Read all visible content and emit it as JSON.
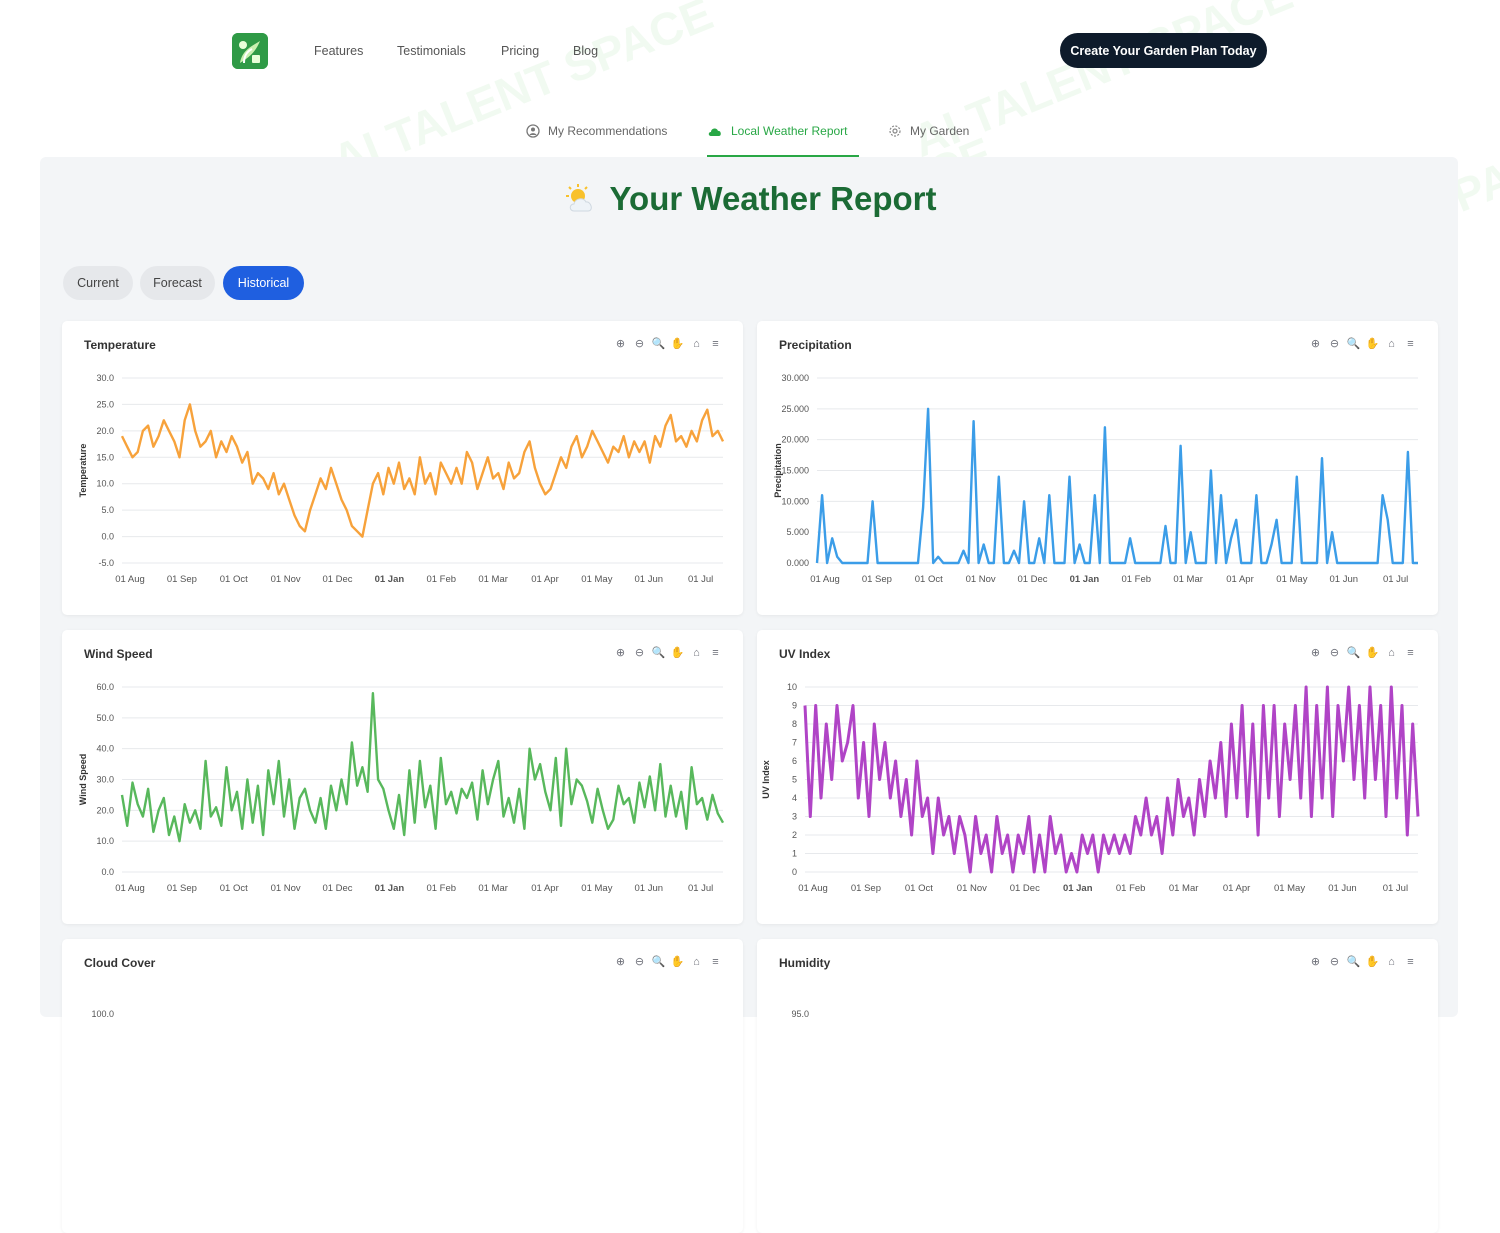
{
  "nav": {
    "links": [
      "Features",
      "Testimonials",
      "Pricing",
      "Blog"
    ],
    "cta_label": "Create Your Garden Plan Today",
    "logo_icon": "plant-logo-icon"
  },
  "tabs": [
    {
      "label": "My Recommendations",
      "icon": "user-circle-icon",
      "active": false
    },
    {
      "label": "Local Weather Report",
      "icon": "cloud-icon",
      "active": true
    },
    {
      "label": "My Garden",
      "icon": "gear-icon",
      "active": false
    }
  ],
  "page_title": "Your Weather Report",
  "pills": [
    {
      "label": "Current",
      "active": false
    },
    {
      "label": "Forecast",
      "active": false
    },
    {
      "label": "Historical",
      "active": true
    }
  ],
  "watermark_text": "AI TALENT SPACE",
  "x_labels": [
    "01 Aug",
    "01 Sep",
    "01 Oct",
    "01 Nov",
    "01 Dec",
    "01 Jan",
    "01 Feb",
    "01 Mar",
    "01 Apr",
    "01 May",
    "01 Jun",
    "01 Jul"
  ],
  "x_bold": "01 Jan",
  "chart_data": [
    {
      "type": "line",
      "title": "Temperature",
      "ylabel": "Temperature",
      "color": "#f7a23b",
      "ylim": [
        -5,
        30
      ],
      "yticks": [
        "30.0",
        "25.0",
        "20.0",
        "15.0",
        "10.0",
        "5.0",
        "0.0",
        "-5.0"
      ],
      "series": [
        {
          "values": [
            19,
            17,
            15,
            16,
            20,
            21,
            17,
            19,
            22,
            20,
            18,
            15,
            22,
            25,
            20,
            17,
            18,
            20,
            15,
            18,
            16,
            19,
            17,
            14,
            16,
            10,
            12,
            11,
            9,
            12,
            8,
            10,
            7,
            4,
            2,
            1,
            5,
            8,
            11,
            9,
            13,
            10,
            7,
            5,
            2,
            1,
            0,
            5,
            10,
            12,
            8,
            13,
            10,
            14,
            9,
            11,
            8,
            15,
            10,
            12,
            8,
            14,
            12,
            10,
            13,
            10,
            16,
            14,
            9,
            12,
            15,
            11,
            12,
            9,
            14,
            11,
            12,
            16,
            18,
            13,
            10,
            8,
            9,
            12,
            15,
            13,
            17,
            19,
            15,
            17,
            20,
            18,
            16,
            14,
            17,
            16,
            19,
            15,
            18,
            16,
            18,
            14,
            19,
            17,
            21,
            23,
            18,
            19,
            17,
            20,
            18,
            22,
            24,
            19,
            20,
            18
          ]
        }
      ]
    },
    {
      "type": "line",
      "title": "Precipitation",
      "ylabel": "Precipitation",
      "color": "#3b9de8",
      "ylim": [
        0,
        30
      ],
      "yticks": [
        "30.000",
        "25.000",
        "20.000",
        "15.000",
        "10.000",
        "5.000",
        "0.000"
      ],
      "series": [
        {
          "values": [
            0,
            11,
            0,
            4,
            1,
            0,
            0,
            0,
            0,
            0,
            0,
            10,
            0,
            0,
            0,
            0,
            0,
            0,
            0,
            0,
            0,
            9,
            25,
            0,
            1,
            0,
            0,
            0,
            0,
            2,
            0,
            23,
            0,
            3,
            0,
            0,
            14,
            0,
            0,
            2,
            0,
            10,
            0,
            0,
            4,
            0,
            11,
            0,
            0,
            0,
            14,
            0,
            3,
            0,
            0,
            11,
            0,
            22,
            0,
            0,
            0,
            0,
            4,
            0,
            0,
            0,
            0,
            0,
            0,
            6,
            0,
            0,
            19,
            0,
            5,
            0,
            0,
            0,
            15,
            0,
            11,
            0,
            4,
            7,
            0,
            0,
            0,
            11,
            0,
            0,
            3,
            7,
            0,
            0,
            0,
            14,
            0,
            0,
            0,
            0,
            17,
            0,
            5,
            0,
            0,
            0,
            0,
            0,
            0,
            0,
            0,
            0,
            11,
            7,
            0,
            0,
            0,
            18,
            0,
            0
          ]
        }
      ]
    },
    {
      "type": "line",
      "title": "Wind Speed",
      "ylabel": "Wind Speed",
      "color": "#58b85c",
      "ylim": [
        0,
        60
      ],
      "yticks": [
        "60.0",
        "50.0",
        "40.0",
        "30.0",
        "20.0",
        "10.0",
        "0.0"
      ],
      "series": [
        {
          "values": [
            25,
            15,
            29,
            22,
            18,
            27,
            13,
            20,
            24,
            12,
            18,
            10,
            22,
            16,
            20,
            14,
            36,
            18,
            21,
            15,
            34,
            20,
            26,
            14,
            30,
            16,
            28,
            12,
            33,
            22,
            36,
            18,
            30,
            14,
            24,
            27,
            20,
            16,
            24,
            14,
            28,
            20,
            30,
            22,
            42,
            28,
            34,
            26,
            58,
            30,
            27,
            20,
            14,
            25,
            12,
            33,
            16,
            36,
            21,
            28,
            14,
            37,
            22,
            26,
            19,
            27,
            24,
            29,
            17,
            33,
            22,
            30,
            36,
            18,
            24,
            16,
            27,
            14,
            40,
            30,
            35,
            26,
            20,
            37,
            15,
            40,
            22,
            30,
            28,
            23,
            16,
            27,
            20,
            14,
            17,
            28,
            22,
            24,
            16,
            29,
            21,
            31,
            20,
            35,
            18,
            28,
            18,
            26,
            14,
            34,
            22,
            24,
            17,
            25,
            19,
            16
          ]
        }
      ]
    },
    {
      "type": "line",
      "title": "UV Index",
      "ylabel": "UV Index",
      "color": "#b044c6",
      "ylim": [
        0,
        10
      ],
      "yticks": [
        "10",
        "9",
        "8",
        "7",
        "6",
        "5",
        "4",
        "3",
        "2",
        "1",
        "0"
      ],
      "series": [
        {
          "values": [
            9,
            3,
            9,
            4,
            8,
            5,
            9,
            6,
            7,
            9,
            4,
            7,
            3,
            8,
            5,
            7,
            4,
            6,
            3,
            5,
            2,
            6,
            3,
            4,
            1,
            4,
            2,
            3,
            1,
            3,
            2,
            0,
            3,
            1,
            2,
            0,
            3,
            1,
            2,
            0,
            2,
            1,
            3,
            0,
            2,
            0,
            3,
            1,
            2,
            0,
            1,
            0,
            2,
            1,
            2,
            0,
            2,
            1,
            2,
            1,
            2,
            1,
            3,
            2,
            4,
            2,
            3,
            1,
            4,
            2,
            5,
            3,
            4,
            2,
            5,
            3,
            6,
            4,
            7,
            3,
            8,
            4,
            9,
            3,
            8,
            2,
            9,
            4,
            9,
            3,
            8,
            5,
            9,
            4,
            10,
            3,
            9,
            4,
            10,
            3,
            9,
            6,
            10,
            5,
            9,
            4,
            10,
            5,
            9,
            3,
            10,
            4,
            9,
            2,
            8,
            3
          ]
        }
      ]
    },
    {
      "type": "line",
      "title": "Cloud Cover",
      "ylabel": "",
      "color": "#444444",
      "ylim": [
        0,
        100
      ],
      "yticks": [
        "100.0"
      ],
      "series": []
    },
    {
      "type": "line",
      "title": "Humidity",
      "ylabel": "",
      "color": "#444444",
      "ylim": [
        0,
        95
      ],
      "yticks": [
        "95.0"
      ],
      "series": []
    }
  ]
}
